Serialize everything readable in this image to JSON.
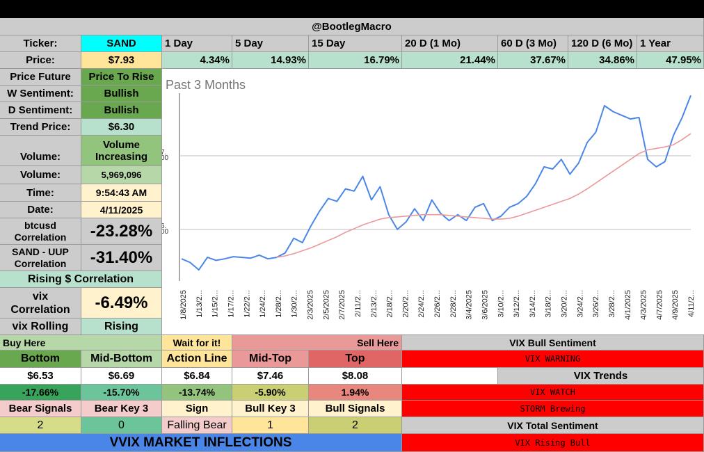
{
  "header": {
    "handle": "@BootlegMacro"
  },
  "periods": {
    "labels": [
      "1 Day",
      "5 Day",
      "15 Day",
      "20 D (1 Mo)",
      "60 D (3 Mo)",
      "120 D (6 Mo)",
      "1 Year"
    ],
    "values": [
      "4.34%",
      "14.93%",
      "16.79%",
      "21.44%",
      "37.67%",
      "34.86%",
      "47.95%"
    ]
  },
  "stats": {
    "ticker_label": "Ticker:",
    "ticker": "SAND",
    "price_label": "Price:",
    "price": "$7.93",
    "price_future_label": "Price Future",
    "price_future": "Price To Rise",
    "w_sentiment_label": "W Sentiment:",
    "w_sentiment": "Bullish",
    "d_sentiment_label": "D Sentiment:",
    "d_sentiment": "Bullish",
    "trend_price_label": "Trend Price:",
    "trend_price": "$6.30",
    "volume_trend_label": "Volume:",
    "volume_trend": "Volume Increasing",
    "volume_label": "Volume:",
    "volume": "5,969,096",
    "time_label": "Time:",
    "time": "9:54:43 AM",
    "date_label": "Date:",
    "date": "4/11/2025",
    "btc_label": "btcusd Correlation",
    "btc_corr": "-23.28%",
    "uup_label": "SAND - UUP Correlation",
    "uup_corr": "-31.40%",
    "rising_corr": "Rising $ Correlation",
    "vix_label": "vix Correlation",
    "vix_corr": "-6.49%",
    "vix_rolling_label": "vix Rolling",
    "vix_rolling": "Rising"
  },
  "chart_data": {
    "type": "line",
    "title": "Past 3 Months",
    "y_tick_labels": [
      "7.\n00",
      "6.\n00"
    ],
    "y_ticks": [
      7.0,
      6.0
    ],
    "ylim": [
      5.3,
      7.85
    ],
    "x_tick_labels": [
      "1/8/2025",
      "1/13/2...",
      "1/15/2...",
      "1/17/2...",
      "1/22/2...",
      "1/24/2...",
      "1/28/2...",
      "1/30/2...",
      "2/3/2025",
      "2/5/2025",
      "2/7/2025",
      "2/11/2...",
      "2/13/2...",
      "2/18/2...",
      "2/20/2...",
      "2/24/2...",
      "2/26/2...",
      "2/28/2...",
      "3/4/2025",
      "3/6/2025",
      "3/10/2...",
      "3/12/2...",
      "3/14/2...",
      "3/18/2...",
      "3/20/2...",
      "3/24/2...",
      "3/26/2...",
      "3/28/2...",
      "4/1/2025",
      "4/3/2025",
      "4/7/2025",
      "4/9/2025",
      "4/11/2..."
    ],
    "series": [
      {
        "name": "Price",
        "color": "#4a86e8",
        "values": [
          5.6,
          5.55,
          5.45,
          5.62,
          5.58,
          5.6,
          5.63,
          5.62,
          5.61,
          5.65,
          5.6,
          5.62,
          5.68,
          5.88,
          5.82,
          6.05,
          6.25,
          6.42,
          6.38,
          6.55,
          6.52,
          6.72,
          6.4,
          6.58,
          6.2,
          6.0,
          6.1,
          6.28,
          6.12,
          6.4,
          6.22,
          6.12,
          6.2,
          6.12,
          6.3,
          6.35,
          6.12,
          6.18,
          6.3,
          6.35,
          6.45,
          6.62,
          6.85,
          6.82,
          6.95,
          6.75,
          6.9,
          7.18,
          7.32,
          7.68,
          7.6,
          7.55,
          7.5,
          7.52,
          6.95,
          6.85,
          6.92,
          7.28,
          7.52,
          7.82
        ]
      },
      {
        "name": "Trend",
        "color": "#ea9999",
        "values": [
          null,
          null,
          null,
          null,
          null,
          null,
          null,
          null,
          null,
          null,
          null,
          5.62,
          5.64,
          5.67,
          5.71,
          5.75,
          5.8,
          5.85,
          5.9,
          5.96,
          6.01,
          6.06,
          6.1,
          6.14,
          6.16,
          6.17,
          6.18,
          6.19,
          6.2,
          6.2,
          6.2,
          6.19,
          6.18,
          6.17,
          6.16,
          6.15,
          6.14,
          6.14,
          6.15,
          6.18,
          6.22,
          6.26,
          6.3,
          6.34,
          6.38,
          6.42,
          6.48,
          6.55,
          6.63,
          6.71,
          6.79,
          6.87,
          6.95,
          7.03,
          7.08,
          7.1,
          7.12,
          7.15,
          7.22,
          7.3
        ]
      }
    ]
  },
  "levels": {
    "buy_here": "Buy Here",
    "wait": "Wait for it!",
    "sell_here": "Sell Here",
    "names": [
      "Bottom",
      "Mid-Bottom",
      "Action Line",
      "Mid-Top",
      "Top"
    ],
    "prices": [
      "$6.53",
      "$6.69",
      "$6.84",
      "$7.46",
      "$8.08"
    ],
    "pcts": [
      "-17.66%",
      "-15.70%",
      "-13.74%",
      "-5.90%",
      "1.94%"
    ]
  },
  "signals": {
    "labels": [
      "Bear Signals",
      "Bear Key 3",
      "Sign",
      "Bull Key 3",
      "Bull Signals"
    ],
    "values": [
      "2",
      "0",
      "Falling Bear",
      "1",
      "2"
    ]
  },
  "banner": "VVIX MARKET INFLECTIONS",
  "vix": {
    "bull_sentiment_label": "VIX Bull Sentiment",
    "warning": "VIX WARNING",
    "trends_label": "VIX Trends",
    "watch": "VIX WATCH",
    "storm": "STORM Brewing",
    "total_label": "VIX Total Sentiment",
    "rising_bull": "VIX Rising Bull"
  },
  "colors": {
    "price_line": "#4a86e8",
    "trend_line": "#ea9999",
    "alert": "#ff0000"
  }
}
